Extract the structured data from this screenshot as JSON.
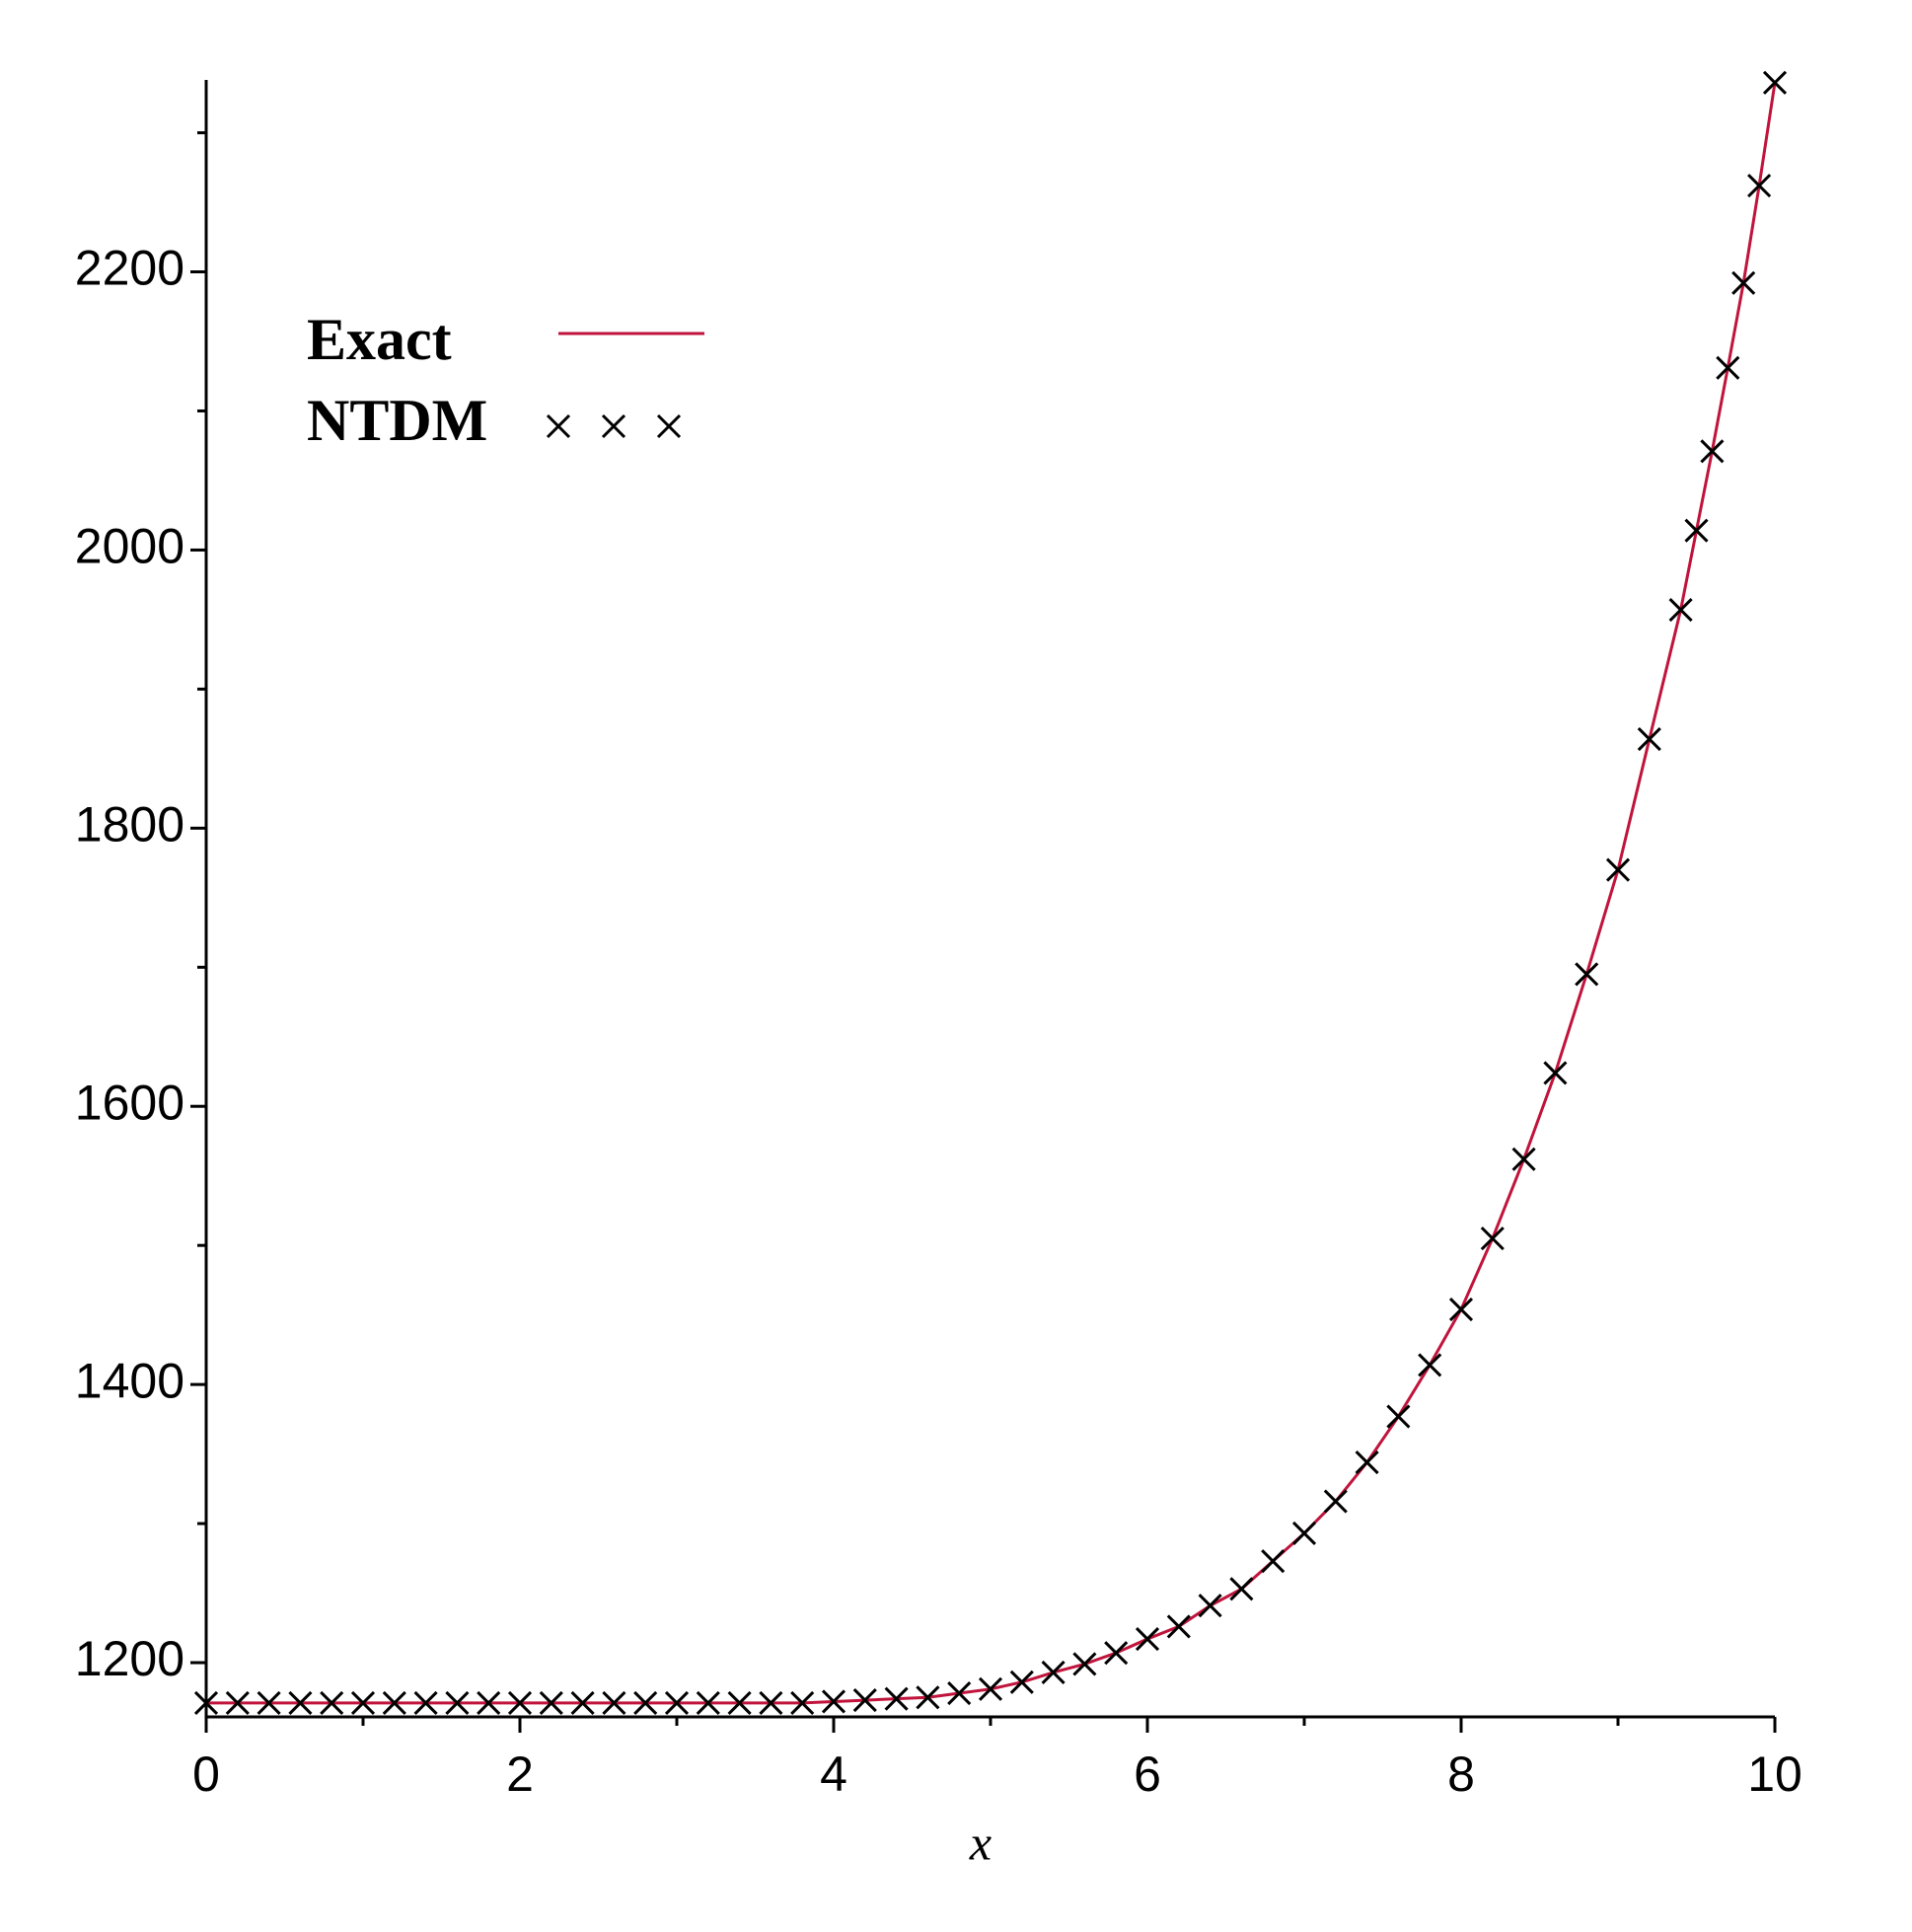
{
  "chart_data": {
    "type": "line",
    "xlabel": "x",
    "x": [
      0,
      0.2,
      0.4,
      0.6,
      0.8,
      1.0,
      1.2,
      1.4,
      1.6,
      1.8,
      2.0,
      2.2,
      2.4,
      2.6,
      2.8,
      3.0,
      3.2,
      3.4,
      3.6,
      3.8,
      4.0,
      4.2,
      4.4,
      4.6,
      4.8,
      5.0,
      5.2,
      5.4,
      5.6,
      5.8,
      6.0,
      6.2,
      6.4,
      6.6,
      6.8,
      7.0,
      7.2,
      7.4,
      7.6,
      7.8,
      8.0,
      8.2,
      8.4,
      8.6,
      8.8,
      9.0,
      9.2,
      9.4,
      9.5,
      9.6,
      9.7,
      9.8,
      9.9,
      10.0
    ],
    "series": [
      {
        "name": "Exact",
        "color": "#c0143c",
        "style": "line",
        "values": [
          1171,
          1171,
          1171,
          1171,
          1171,
          1171,
          1171,
          1171,
          1171,
          1171,
          1171,
          1171,
          1171,
          1171,
          1171,
          1171,
          1171,
          1171,
          1171,
          1171,
          1172,
          1173,
          1174,
          1175,
          1178,
          1181,
          1186,
          1193,
          1199,
          1207,
          1217,
          1226,
          1241,
          1253,
          1273,
          1293,
          1316,
          1344,
          1377,
          1414,
          1454,
          1505,
          1562,
          1624,
          1695,
          1770,
          1864,
          1957,
          2014,
          2071,
          2131,
          2192,
          2262,
          2336
        ]
      },
      {
        "name": "NTDM",
        "color": "#000000",
        "style": "cross",
        "values": [
          1171,
          1171,
          1171,
          1171,
          1171,
          1171,
          1171,
          1171,
          1171,
          1171,
          1171,
          1171,
          1171,
          1171,
          1171,
          1171,
          1171,
          1171,
          1171,
          1171,
          1172,
          1173,
          1174,
          1175,
          1178,
          1181,
          1186,
          1193,
          1199,
          1207,
          1217,
          1226,
          1241,
          1253,
          1273,
          1293,
          1316,
          1344,
          1377,
          1414,
          1454,
          1505,
          1562,
          1624,
          1695,
          1770,
          1864,
          1957,
          2014,
          2071,
          2131,
          2192,
          2262,
          2336
        ]
      }
    ],
    "xlim": [
      0,
      10
    ],
    "xticks": [
      0,
      2,
      4,
      6,
      8,
      10
    ],
    "xminorticks": [
      1,
      3,
      5,
      7,
      9
    ],
    "ylim": [
      1161,
      2338
    ],
    "yticks": [
      1200,
      1400,
      1600,
      1800,
      2000,
      2200
    ],
    "yminorticks": [
      1300,
      1500,
      1700,
      1900,
      2100,
      2300
    ],
    "legend": "upper left",
    "grid": false
  }
}
